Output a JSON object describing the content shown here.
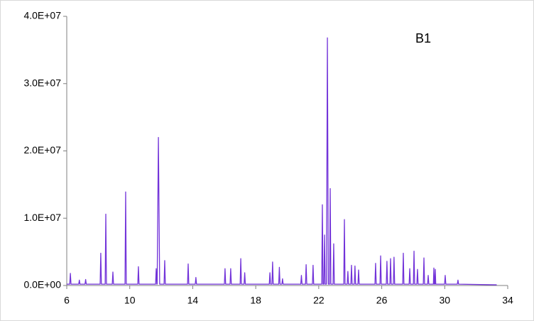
{
  "chart_data": {
    "type": "line",
    "annotation": "B1",
    "color": "#7233d9",
    "xlim": [
      6,
      34
    ],
    "xticks": [
      6,
      10,
      14,
      18,
      22,
      26,
      30,
      34
    ],
    "ylim": [
      0,
      40000000
    ],
    "yticks": [
      {
        "value": 0,
        "label": "0.0E+00"
      },
      {
        "value": 10000000,
        "label": "1.0E+07"
      },
      {
        "value": 20000000,
        "label": "2.0E+07"
      },
      {
        "value": 30000000,
        "label": "3.0E+07"
      },
      {
        "value": 40000000,
        "label": "4.0E+07"
      }
    ],
    "x": [
      6.0,
      6.19,
      6.23,
      6.27,
      6.76,
      6.8,
      6.84,
      7.16,
      7.2,
      7.24,
      8.12,
      8.16,
      8.2,
      8.44,
      8.48,
      8.52,
      8.89,
      8.93,
      8.97,
      9.7,
      9.74,
      9.78,
      10.51,
      10.55,
      10.59,
      11.64,
      11.68,
      11.72,
      11.74,
      11.82,
      11.9,
      12.18,
      12.22,
      12.26,
      13.67,
      13.71,
      13.75,
      14.16,
      14.2,
      14.24,
      16.01,
      16.05,
      16.09,
      16.37,
      16.41,
      16.45,
      17.01,
      17.05,
      17.09,
      17.26,
      17.3,
      17.34,
      18.86,
      18.9,
      18.94,
      19.03,
      19.07,
      19.11,
      19.46,
      19.5,
      19.54,
      19.66,
      19.7,
      19.74,
      20.86,
      20.9,
      20.94,
      21.16,
      21.2,
      21.24,
      21.6,
      21.64,
      21.68,
      22.19,
      22.23,
      22.27,
      22.33,
      22.37,
      22.41,
      22.49,
      22.55,
      22.61,
      22.69,
      22.73,
      22.77,
      22.91,
      22.95,
      22.99,
      23.59,
      23.63,
      23.67,
      23.81,
      23.85,
      23.89,
      24.04,
      24.08,
      24.12,
      24.26,
      24.3,
      24.34,
      24.49,
      24.53,
      24.57,
      25.57,
      25.61,
      25.65,
      25.89,
      25.93,
      25.97,
      26.29,
      26.33,
      26.37,
      26.52,
      26.56,
      26.6,
      26.74,
      26.78,
      26.82,
      27.33,
      27.37,
      27.41,
      27.74,
      27.78,
      27.82,
      28.01,
      28.05,
      28.09,
      28.23,
      28.27,
      28.31,
      28.64,
      28.68,
      28.72,
      28.91,
      28.95,
      28.99,
      29.28,
      29.31,
      29.34,
      29.37,
      29.4,
      29.43,
      29.99,
      30.03,
      30.07,
      30.8,
      30.84,
      30.88,
      33.3
    ],
    "values": [
      200000,
      200000,
      1800000,
      200000,
      200000,
      800000,
      200000,
      200000,
      900000,
      200000,
      200000,
      4800000,
      200000,
      200000,
      10600000,
      200000,
      200000,
      2000000,
      200000,
      200000,
      13900000,
      200000,
      200000,
      2800000,
      200000,
      200000,
      2500000,
      200000,
      200000,
      22000000,
      200000,
      200000,
      3700000,
      200000,
      200000,
      3200000,
      200000,
      200000,
      1200000,
      200000,
      200000,
      2500000,
      200000,
      200000,
      2500000,
      200000,
      200000,
      4000000,
      200000,
      200000,
      1900000,
      200000,
      200000,
      1900000,
      200000,
      200000,
      3500000,
      200000,
      200000,
      2700000,
      200000,
      200000,
      1000000,
      200000,
      200000,
      1500000,
      200000,
      200000,
      3100000,
      200000,
      200000,
      3000000,
      200000,
      200000,
      12000000,
      200000,
      200000,
      7500000,
      200000,
      200000,
      36800000,
      200000,
      200000,
      14400000,
      200000,
      200000,
      6200000,
      200000,
      200000,
      9800000,
      200000,
      200000,
      2100000,
      200000,
      200000,
      3000000,
      200000,
      200000,
      2900000,
      200000,
      200000,
      2300000,
      200000,
      200000,
      3300000,
      200000,
      200000,
      4400000,
      200000,
      200000,
      3600000,
      200000,
      200000,
      4000000,
      200000,
      200000,
      4200000,
      200000,
      200000,
      4800000,
      200000,
      200000,
      2500000,
      200000,
      200000,
      5100000,
      200000,
      200000,
      2400000,
      200000,
      200000,
      4100000,
      200000,
      200000,
      1500000,
      200000,
      200000,
      2600000,
      200000,
      200000,
      2400000,
      200000,
      200000,
      1500000,
      200000,
      200000,
      800000,
      200000,
      100000
    ]
  }
}
